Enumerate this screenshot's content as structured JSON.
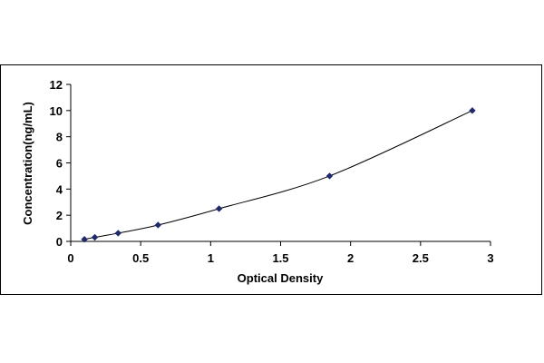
{
  "chart_data": {
    "type": "scatter",
    "title": "",
    "xlabel": "Optical Density",
    "ylabel": "Concentration(ng/mL)",
    "xlim": [
      0,
      3
    ],
    "ylim": [
      0,
      12
    ],
    "x_ticks": [
      "0",
      "0.5",
      "1",
      "1.5",
      "2",
      "2.5",
      "3"
    ],
    "y_ticks": [
      "0",
      "2",
      "4",
      "6",
      "8",
      "10",
      "12"
    ],
    "grid": false,
    "legend": "none",
    "marker_color": "#1f2a6b",
    "line_color": "#000000",
    "series": [
      {
        "points": [
          {
            "x": 0.098,
            "y": 0.16
          },
          {
            "x": 0.172,
            "y": 0.31
          },
          {
            "x": 0.339,
            "y": 0.63
          },
          {
            "x": 0.624,
            "y": 1.25
          },
          {
            "x": 1.06,
            "y": 2.5
          },
          {
            "x": 1.85,
            "y": 5.0
          },
          {
            "x": 2.87,
            "y": 10.0
          }
        ]
      }
    ]
  }
}
